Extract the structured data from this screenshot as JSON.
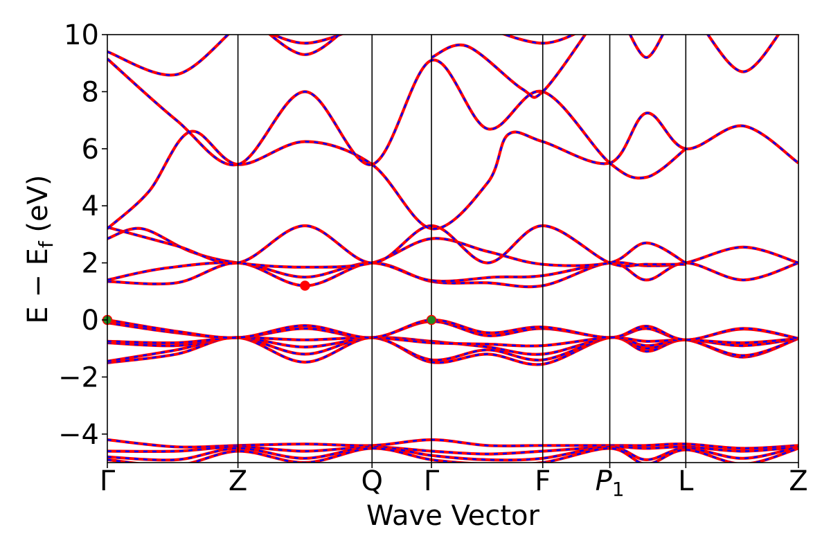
{
  "chart_data": {
    "type": "line",
    "title": "",
    "xlabel": "Wave Vector",
    "ylabel_parts": {
      "main": "E − E",
      "sub": "f",
      "unit": " (eV)"
    },
    "ylim": [
      -5,
      10
    ],
    "yticks": [
      -4,
      -2,
      0,
      2,
      4,
      6,
      8,
      10
    ],
    "ytick_labels": [
      "−4",
      "−2",
      "0",
      "2",
      "4",
      "6",
      "8",
      "10"
    ],
    "grid": false,
    "k_path": [
      {
        "label": "Γ",
        "pos": 0.0,
        "italic": false,
        "sub": ""
      },
      {
        "label": "Z",
        "pos": 0.189,
        "italic": false,
        "sub": ""
      },
      {
        "label": "Q",
        "pos": 0.383,
        "italic": false,
        "sub": ""
      },
      {
        "label": "Γ",
        "pos": 0.469,
        "italic": false,
        "sub": ""
      },
      {
        "label": "F",
        "pos": 0.63,
        "italic": false,
        "sub": ""
      },
      {
        "label": "P",
        "pos": 0.727,
        "italic": true,
        "sub": "1"
      },
      {
        "label": "L",
        "pos": 0.837,
        "italic": false,
        "sub": ""
      },
      {
        "label": "Z",
        "pos": 1.0,
        "italic": false,
        "sub": ""
      }
    ],
    "series": [
      {
        "style": "solid red overlaid by dashed blue"
      }
    ],
    "bands": [
      [
        [
          0,
          -1.5
        ],
        [
          0.1,
          -1.2
        ],
        [
          0.189,
          -0.62
        ],
        [
          0.286,
          -1.48
        ],
        [
          0.383,
          -0.62
        ],
        [
          0.469,
          -1.48
        ],
        [
          0.55,
          -1.2
        ],
        [
          0.63,
          -1.55
        ],
        [
          0.727,
          -0.62
        ],
        [
          0.78,
          -1.1
        ],
        [
          0.837,
          -0.7
        ],
        [
          0.92,
          -1.3
        ],
        [
          1,
          -0.65
        ]
      ],
      [
        [
          0,
          -1.45
        ],
        [
          0.1,
          -1.05
        ],
        [
          0.189,
          -0.62
        ],
        [
          0.286,
          -1.2
        ],
        [
          0.383,
          -0.62
        ],
        [
          0.469,
          -1.4
        ],
        [
          0.55,
          -1.05
        ],
        [
          0.63,
          -1.4
        ],
        [
          0.727,
          -0.62
        ],
        [
          0.78,
          -1.0
        ],
        [
          0.837,
          -0.7
        ],
        [
          0.92,
          -1.25
        ],
        [
          1,
          -0.65
        ]
      ],
      [
        [
          0,
          -0.8
        ],
        [
          0.1,
          -0.9
        ],
        [
          0.189,
          -0.62
        ],
        [
          0.286,
          -0.95
        ],
        [
          0.383,
          -0.62
        ],
        [
          0.469,
          -0.75
        ],
        [
          0.55,
          -0.95
        ],
        [
          0.63,
          -1.2
        ],
        [
          0.727,
          -0.62
        ],
        [
          0.78,
          -0.9
        ],
        [
          0.837,
          -0.7
        ],
        [
          0.92,
          -0.9
        ],
        [
          1,
          -0.65
        ]
      ],
      [
        [
          0,
          -0.75
        ],
        [
          0.1,
          -0.8
        ],
        [
          0.189,
          -0.62
        ],
        [
          0.286,
          -0.7
        ],
        [
          0.383,
          -0.62
        ],
        [
          0.469,
          -0.8
        ],
        [
          0.55,
          -0.85
        ],
        [
          0.63,
          -0.9
        ],
        [
          0.727,
          -0.62
        ],
        [
          0.78,
          -0.75
        ],
        [
          0.837,
          -0.7
        ],
        [
          0.92,
          -0.8
        ],
        [
          1,
          -0.65
        ]
      ],
      [
        [
          0,
          -0.1
        ],
        [
          0.1,
          -0.45
        ],
        [
          0.189,
          -0.62
        ],
        [
          0.286,
          -0.3
        ],
        [
          0.383,
          -0.62
        ],
        [
          0.469,
          -0.05
        ],
        [
          0.55,
          -0.55
        ],
        [
          0.63,
          -0.3
        ],
        [
          0.727,
          -0.62
        ],
        [
          0.78,
          -0.3
        ],
        [
          0.837,
          -0.7
        ],
        [
          0.92,
          -0.32
        ],
        [
          1,
          -0.65
        ]
      ],
      [
        [
          0,
          0.0
        ],
        [
          0.1,
          -0.4
        ],
        [
          0.189,
          -0.62
        ],
        [
          0.286,
          -0.2
        ],
        [
          0.383,
          -0.62
        ],
        [
          0.469,
          0.0
        ],
        [
          0.55,
          -0.45
        ],
        [
          0.63,
          -0.25
        ],
        [
          0.727,
          -0.62
        ],
        [
          0.78,
          -0.22
        ],
        [
          0.837,
          -0.7
        ],
        [
          0.92,
          -0.3
        ],
        [
          1,
          -0.65
        ]
      ],
      [
        [
          0,
          1.35
        ],
        [
          0.1,
          1.3
        ],
        [
          0.189,
          2.0
        ],
        [
          0.286,
          1.2
        ],
        [
          0.383,
          2.0
        ],
        [
          0.469,
          1.35
        ],
        [
          0.55,
          1.3
        ],
        [
          0.63,
          1.2
        ],
        [
          0.727,
          2.0
        ],
        [
          0.78,
          1.4
        ],
        [
          0.837,
          2.0
        ],
        [
          0.92,
          1.4
        ],
        [
          1,
          2.0
        ]
      ],
      [
        [
          0,
          1.4
        ],
        [
          0.08,
          1.8
        ],
        [
          0.189,
          2.0
        ],
        [
          0.286,
          1.5
        ],
        [
          0.383,
          2.0
        ],
        [
          0.469,
          1.38
        ],
        [
          0.56,
          1.5
        ],
        [
          0.63,
          1.55
        ],
        [
          0.727,
          2.0
        ],
        [
          0.78,
          1.9
        ],
        [
          0.837,
          2.0
        ],
        [
          0.92,
          2.55
        ],
        [
          1,
          2.0
        ]
      ],
      [
        [
          0,
          2.85
        ],
        [
          0.05,
          3.2
        ],
        [
          0.12,
          2.4
        ],
        [
          0.189,
          2.0
        ],
        [
          0.286,
          1.85
        ],
        [
          0.383,
          2.0
        ],
        [
          0.469,
          2.85
        ],
        [
          0.55,
          2.4
        ],
        [
          0.63,
          1.95
        ],
        [
          0.727,
          2.0
        ],
        [
          0.78,
          2.7
        ],
        [
          0.837,
          2.0
        ]
      ],
      [
        [
          0,
          3.25
        ],
        [
          0.1,
          2.6
        ],
        [
          0.189,
          2.0
        ],
        [
          0.286,
          3.3
        ],
        [
          0.383,
          2.0
        ],
        [
          0.469,
          3.3
        ],
        [
          0.55,
          2.0
        ],
        [
          0.63,
          3.3
        ],
        [
          0.727,
          2.0
        ],
        [
          0.78,
          1.95
        ],
        [
          0.837,
          1.95
        ]
      ],
      [
        [
          0,
          3.2
        ],
        [
          0.06,
          4.5
        ],
        [
          0.12,
          6.6
        ],
        [
          0.189,
          5.45
        ],
        [
          0.286,
          6.25
        ],
        [
          0.383,
          5.45
        ],
        [
          0.469,
          3.2
        ],
        [
          0.55,
          4.8
        ],
        [
          0.58,
          6.5
        ],
        [
          0.63,
          6.25
        ],
        [
          0.727,
          5.5
        ],
        [
          0.78,
          7.25
        ],
        [
          0.837,
          6.0
        ],
        [
          0.92,
          6.8
        ],
        [
          1,
          5.5
        ]
      ],
      [
        [
          0,
          9.15
        ],
        [
          0.1,
          7.0
        ],
        [
          0.189,
          5.45
        ],
        [
          0.286,
          8.0
        ],
        [
          0.383,
          5.45
        ],
        [
          0.469,
          9.1
        ],
        [
          0.55,
          6.7
        ],
        [
          0.63,
          8.0
        ],
        [
          0.727,
          5.5
        ],
        [
          0.78,
          5.0
        ],
        [
          0.837,
          6.0
        ]
      ],
      [
        [
          0,
          9.4
        ],
        [
          0.1,
          8.6
        ],
        [
          0.189,
          10.3
        ],
        [
          0.21,
          10.3
        ],
        [
          0.286,
          9.7
        ],
        [
          0.37,
          10.3
        ]
      ],
      [
        [
          0.22,
          10.3
        ],
        [
          0.286,
          9.3
        ],
        [
          0.35,
          10.3
        ]
      ],
      [
        [
          0.469,
          9.2
        ],
        [
          0.52,
          9.6
        ],
        [
          0.6,
          8.1
        ],
        [
          0.63,
          8.0
        ],
        [
          0.7,
          10.3
        ]
      ],
      [
        [
          0.54,
          10.3
        ],
        [
          0.63,
          9.7
        ],
        [
          0.7,
          10.3
        ]
      ],
      [
        [
          0.75,
          10.3
        ],
        [
          0.78,
          9.2
        ],
        [
          0.81,
          10.3
        ]
      ],
      [
        [
          0.86,
          10.3
        ],
        [
          0.92,
          8.7
        ],
        [
          0.98,
          10.3
        ]
      ],
      [
        [
          0,
          -4.2
        ],
        [
          0.1,
          -4.45
        ],
        [
          0.189,
          -4.4
        ],
        [
          0.286,
          -4.35
        ],
        [
          0.383,
          -4.4
        ],
        [
          0.469,
          -4.2
        ],
        [
          0.55,
          -4.4
        ],
        [
          0.63,
          -4.4
        ],
        [
          0.727,
          -4.4
        ],
        [
          0.78,
          -4.4
        ],
        [
          0.837,
          -4.35
        ],
        [
          0.92,
          -4.5
        ],
        [
          1,
          -4.4
        ]
      ],
      [
        [
          0,
          -4.6
        ],
        [
          0.1,
          -4.6
        ],
        [
          0.189,
          -4.45
        ],
        [
          0.286,
          -4.6
        ],
        [
          0.383,
          -4.45
        ],
        [
          0.469,
          -4.6
        ],
        [
          0.55,
          -4.7
        ],
        [
          0.63,
          -4.6
        ],
        [
          0.727,
          -4.45
        ],
        [
          0.78,
          -4.5
        ],
        [
          0.837,
          -4.45
        ],
        [
          0.92,
          -4.6
        ],
        [
          1,
          -4.45
        ]
      ],
      [
        [
          0,
          -4.8
        ],
        [
          0.1,
          -4.9
        ],
        [
          0.189,
          -4.5
        ],
        [
          0.286,
          -4.85
        ],
        [
          0.383,
          -4.45
        ],
        [
          0.469,
          -4.75
        ],
        [
          0.55,
          -4.9
        ],
        [
          0.63,
          -4.85
        ],
        [
          0.727,
          -4.45
        ],
        [
          0.78,
          -4.9
        ],
        [
          0.837,
          -4.5
        ],
        [
          0.92,
          -4.85
        ],
        [
          1,
          -4.45
        ]
      ],
      [
        [
          0,
          -4.9
        ],
        [
          0.1,
          -5.1
        ],
        [
          0.189,
          -4.6
        ],
        [
          0.286,
          -5.0
        ],
        [
          0.383,
          -4.5
        ],
        [
          0.469,
          -4.9
        ],
        [
          0.55,
          -5.05
        ],
        [
          0.63,
          -5.0
        ],
        [
          0.727,
          -4.5
        ],
        [
          0.78,
          -5.05
        ],
        [
          0.837,
          -4.55
        ],
        [
          0.92,
          -5.05
        ],
        [
          1,
          -4.5
        ]
      ]
    ],
    "markers": [
      {
        "x": 0.0,
        "y": 0.0,
        "color": "#228B22"
      },
      {
        "x": 0.469,
        "y": 0.0,
        "color": "#228B22"
      },
      {
        "x": 0.286,
        "y": 1.2,
        "color": "#ff0000"
      }
    ],
    "colors": {
      "line_solid": "#ff0000",
      "line_dash": "#0000ff",
      "axis": "#000000"
    }
  }
}
